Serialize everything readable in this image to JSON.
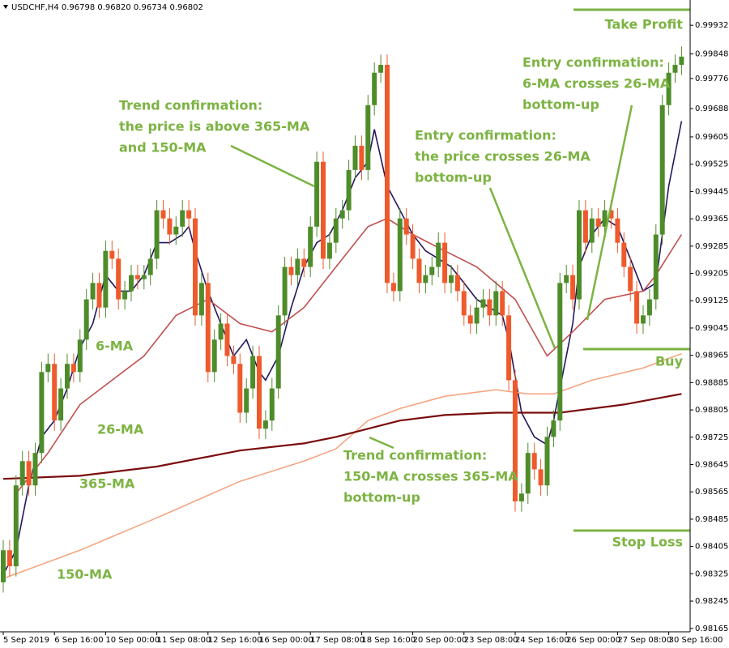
{
  "chart_data": {
    "type": "candlestick",
    "title": "USDCHF,H4  0.96798 0.96820 0.96734 0.96802",
    "categories": [
      "5 Sep 2019",
      null,
      null,
      null,
      null,
      null,
      null,
      null,
      "6 Sep 16:00",
      null,
      null,
      null,
      null,
      null,
      null,
      null,
      "10 Sep 00:00",
      null,
      null,
      null,
      null,
      null,
      null,
      null,
      "11 Sep 08:00",
      null,
      null,
      null,
      null,
      null,
      null,
      null,
      "12 Sep 16:00",
      null,
      null,
      null,
      null,
      null,
      null,
      null,
      "16 Sep 00:00",
      null,
      null,
      null,
      null,
      null,
      null,
      null,
      "17 Sep 08:00",
      null,
      null,
      null,
      null,
      null,
      null,
      null,
      "18 Sep 16:00",
      null,
      null,
      null,
      null,
      null,
      null,
      null,
      "20 Sep 00:00",
      null,
      null,
      null,
      null,
      null,
      null,
      null,
      "23 Sep 08:00",
      null,
      null,
      null,
      null,
      null,
      null,
      null,
      "24 Sep 16:00",
      null,
      null,
      null,
      null,
      null,
      null,
      null,
      "26 Sep 00:00",
      null,
      null,
      null,
      null,
      null,
      null,
      null,
      "27 Sep 08:00",
      null,
      null,
      null,
      null,
      null,
      null,
      null,
      "30 Sep 16:00",
      null,
      null
    ],
    "open": [
      0.983,
      0.98394,
      0.98347,
      0.98584,
      0.98655,
      0.98584,
      0.98679,
      0.98916,
      0.9894,
      0.98774,
      0.98868,
      0.9894,
      0.98916,
      0.99011,
      0.99129,
      0.99177,
      0.99105,
      0.99271,
      0.99248,
      0.99129,
      0.99153,
      0.992,
      0.99188,
      0.992,
      0.99248,
      0.9939,
      0.99366,
      0.99319,
      0.99342,
      0.9939,
      0.99366,
      0.99082,
      0.99177,
      0.98916,
      0.99011,
      0.99058,
      0.98963,
      0.9894,
      0.98797,
      0.98868,
      0.98963,
      0.9875,
      0.98774,
      0.98868,
      0.99082,
      0.99224,
      0.992,
      0.99248,
      0.99224,
      0.99342,
      0.99532,
      0.99248,
      0.99295,
      0.99366,
      0.9939,
      0.99508,
      0.99579,
      0.99508,
      0.99698,
      0.99793,
      0.99816,
      0.99177,
      0.99153,
      0.99366,
      0.99319,
      0.99248,
      0.99177,
      0.992,
      0.99224,
      0.99295,
      0.99177,
      0.992,
      0.99153,
      0.99082,
      0.99058,
      0.99105,
      0.99129,
      0.99082,
      0.99153,
      0.99082,
      0.98892,
      0.98537,
      0.9856,
      0.98679,
      0.98631,
      0.98584,
      0.98726,
      0.98774,
      0.99177,
      0.992,
      0.99129,
      0.9939,
      0.99295,
      0.99366,
      0.99342,
      0.9939,
      0.99366,
      0.99295,
      0.99224,
      0.99153,
      0.99058,
      0.99082,
      0.99129,
      0.99319,
      0.99698,
      0.99793,
      0.99816
    ],
    "high": [
      0.98424,
      0.98424,
      0.98614,
      0.98685,
      0.98685,
      0.98709,
      0.98946,
      0.9897,
      0.9897,
      0.98898,
      0.9897,
      0.9897,
      0.99041,
      0.99159,
      0.99207,
      0.99207,
      0.99301,
      0.99301,
      0.99278,
      0.99183,
      0.9923,
      0.9923,
      0.9923,
      0.99278,
      0.9942,
      0.9942,
      0.99396,
      0.99372,
      0.9942,
      0.9942,
      0.99396,
      0.99207,
      0.99207,
      0.99041,
      0.99088,
      0.99088,
      0.98993,
      0.9897,
      0.98898,
      0.98993,
      0.98993,
      0.98804,
      0.98898,
      0.99112,
      0.99254,
      0.99254,
      0.99278,
      0.99278,
      0.99372,
      0.99562,
      0.99562,
      0.99325,
      0.99396,
      0.9942,
      0.99538,
      0.99609,
      0.99609,
      0.99728,
      0.99823,
      0.99846,
      0.99846,
      0.99207,
      0.99396,
      0.99396,
      0.99349,
      0.99278,
      0.9923,
      0.99254,
      0.99325,
      0.99325,
      0.9923,
      0.9923,
      0.99183,
      0.99112,
      0.99135,
      0.99159,
      0.99159,
      0.99183,
      0.99183,
      0.99112,
      0.98922,
      0.9859,
      0.98709,
      0.98709,
      0.98661,
      0.98756,
      0.98804,
      0.99207,
      0.9923,
      0.9923,
      0.9942,
      0.9942,
      0.99396,
      0.99396,
      0.9942,
      0.9942,
      0.99396,
      0.99325,
      0.99254,
      0.99183,
      0.99112,
      0.99159,
      0.99349,
      0.99728,
      0.99823,
      0.99846,
      0.9987
    ],
    "low": [
      0.9827,
      0.98317,
      0.98317,
      0.98554,
      0.98554,
      0.98554,
      0.98649,
      0.98886,
      0.98744,
      0.98744,
      0.98838,
      0.98886,
      0.98886,
      0.98981,
      0.99099,
      0.99075,
      0.99075,
      0.99218,
      0.99099,
      0.99099,
      0.99123,
      0.99158,
      0.99158,
      0.9917,
      0.99218,
      0.99336,
      0.99289,
      0.99289,
      0.99312,
      0.99336,
      0.99052,
      0.99052,
      0.98886,
      0.98886,
      0.98981,
      0.98933,
      0.9891,
      0.98767,
      0.98767,
      0.98838,
      0.9872,
      0.9872,
      0.98744,
      0.98838,
      0.99052,
      0.9917,
      0.9917,
      0.99194,
      0.99194,
      0.99312,
      0.99218,
      0.99218,
      0.99265,
      0.99336,
      0.9936,
      0.99478,
      0.99478,
      0.99478,
      0.99668,
      0.99763,
      0.99147,
      0.99123,
      0.99123,
      0.99289,
      0.99218,
      0.99147,
      0.99147,
      0.9917,
      0.99194,
      0.99147,
      0.99147,
      0.99123,
      0.99052,
      0.99028,
      0.99028,
      0.99075,
      0.99052,
      0.99052,
      0.99052,
      0.98862,
      0.98507,
      0.98507,
      0.9853,
      0.98601,
      0.98554,
      0.98554,
      0.98696,
      0.98744,
      0.99147,
      0.99099,
      0.99099,
      0.99265,
      0.99265,
      0.99312,
      0.99312,
      0.99336,
      0.99265,
      0.99194,
      0.99123,
      0.99028,
      0.99028,
      0.99052,
      0.99099,
      0.99289,
      0.99668,
      0.99763,
      0.99786
    ],
    "close": [
      0.98394,
      0.98347,
      0.98584,
      0.98655,
      0.98584,
      0.98679,
      0.98916,
      0.9894,
      0.98774,
      0.98868,
      0.9894,
      0.98916,
      0.99011,
      0.99129,
      0.99177,
      0.99105,
      0.99271,
      0.99248,
      0.99129,
      0.99153,
      0.992,
      0.99188,
      0.992,
      0.99248,
      0.9939,
      0.99366,
      0.99319,
      0.99342,
      0.9939,
      0.99366,
      0.99082,
      0.99177,
      0.98916,
      0.99011,
      0.99058,
      0.98963,
      0.9894,
      0.98797,
      0.98868,
      0.98963,
      0.9875,
      0.98774,
      0.98868,
      0.99082,
      0.99224,
      0.992,
      0.99248,
      0.99224,
      0.99342,
      0.99532,
      0.99248,
      0.99295,
      0.99366,
      0.9939,
      0.99508,
      0.99579,
      0.99508,
      0.99698,
      0.99793,
      0.99816,
      0.99177,
      0.99153,
      0.99366,
      0.99319,
      0.99248,
      0.99177,
      0.992,
      0.99224,
      0.99295,
      0.99177,
      0.992,
      0.99153,
      0.99082,
      0.99058,
      0.99105,
      0.99129,
      0.99082,
      0.99153,
      0.99082,
      0.98892,
      0.98537,
      0.9856,
      0.98679,
      0.98631,
      0.98584,
      0.98726,
      0.98774,
      0.99177,
      0.992,
      0.99129,
      0.9939,
      0.99295,
      0.99366,
      0.99342,
      0.9939,
      0.99366,
      0.99295,
      0.99224,
      0.99153,
      0.99058,
      0.99082,
      0.99129,
      0.99319,
      0.99698,
      0.99793,
      0.99816,
      0.9984
    ],
    "up_color": "#4e8c2a",
    "down_color": "#ee5a2c",
    "ylim": [
      0.98155,
      1.00006
    ],
    "yticks": [
      0.99932,
      0.99848,
      0.99776,
      0.99688,
      0.99605,
      0.99525,
      0.99445,
      0.99365,
      0.99285,
      0.99205,
      0.99125,
      0.99045,
      0.98965,
      0.98885,
      0.98805,
      0.98725,
      0.98645,
      0.98565,
      0.98485,
      0.98405,
      0.98325,
      0.98245,
      0.98165
    ],
    "series": [
      {
        "name": "6-MA",
        "color": "#22165e",
        "x": [
          0,
          2,
          4,
          6,
          8,
          10,
          12,
          14,
          16,
          18,
          20,
          22,
          24,
          26,
          28,
          29,
          30,
          32,
          34,
          36,
          38,
          40,
          41,
          43,
          45,
          47,
          49,
          51,
          53,
          55,
          57,
          58,
          60,
          62,
          64,
          66,
          68,
          70,
          72,
          74,
          76,
          78,
          79,
          81,
          83,
          85,
          86,
          88,
          89,
          90,
          92,
          94,
          96,
          98,
          100,
          102,
          104,
          106
        ],
        "values": [
          0.98323,
          0.98394,
          0.98584,
          0.98726,
          0.98774,
          0.98868,
          0.98987,
          0.99058,
          0.992,
          0.99153,
          0.99153,
          0.992,
          0.99295,
          0.99295,
          0.99319,
          0.99342,
          0.99271,
          0.99153,
          0.99058,
          0.98963,
          0.99011,
          0.98916,
          0.98892,
          0.98963,
          0.99105,
          0.99224,
          0.99295,
          0.99319,
          0.9939,
          0.99485,
          0.99532,
          0.99627,
          0.99461,
          0.9939,
          0.99319,
          0.99271,
          0.99248,
          0.99224,
          0.99177,
          0.99129,
          0.99105,
          0.99082,
          0.99011,
          0.98797,
          0.98726,
          0.98703,
          0.98774,
          0.98963,
          0.99058,
          0.99224,
          0.99319,
          0.99366,
          0.99342,
          0.99248,
          0.99153,
          0.99177,
          0.99461,
          0.99651
        ]
      },
      {
        "name": "26-MA",
        "color": "#c0504d",
        "x": [
          2,
          7,
          12,
          17,
          22,
          27,
          32,
          37,
          42,
          47,
          52,
          57,
          60,
          64,
          69,
          74,
          80,
          85,
          89,
          94,
          100,
          102,
          106
        ],
        "values": [
          0.9856,
          0.98679,
          0.98821,
          0.98892,
          0.98963,
          0.99082,
          0.99129,
          0.99058,
          0.99034,
          0.99105,
          0.99224,
          0.99342,
          0.99366,
          0.99319,
          0.99271,
          0.99224,
          0.99129,
          0.98963,
          0.99034,
          0.99129,
          0.99153,
          0.992,
          0.99319
        ]
      },
      {
        "name": "150-MA",
        "color": "#f4a582",
        "x": [
          0,
          12,
          24,
          37,
          47,
          52,
          57,
          62,
          69,
          77,
          82,
          86,
          92,
          100,
          106
        ],
        "values": [
          0.98311,
          0.98394,
          0.98489,
          0.98596,
          0.98655,
          0.98691,
          0.98774,
          0.98809,
          0.98845,
          0.98864,
          0.98852,
          0.98852,
          0.98892,
          0.98928,
          0.9897
        ]
      },
      {
        "name": "365-MA",
        "color": "#7a0c0c",
        "x": [
          0,
          12,
          24,
          37,
          47,
          52,
          57,
          62,
          69,
          77,
          87,
          97,
          106
        ],
        "values": [
          0.98603,
          0.98612,
          0.98639,
          0.98686,
          0.98707,
          0.98726,
          0.9875,
          0.98774,
          0.9879,
          0.98797,
          0.98797,
          0.98821,
          0.98852
        ]
      }
    ],
    "annotations": [
      [
        "Trend confirmation:",
        "the price is above 365-MA",
        "and 150-MA"
      ],
      [
        "Entry confirmation:",
        "the price crosses 26-MA",
        "bottom-up"
      ],
      [
        "Entry confirmation:",
        "6-MA crosses 26-MA",
        "bottom-up"
      ],
      [
        "Trend confirmation:",
        "150-MA crosses 365-MA",
        "bottom-up"
      ]
    ],
    "level_labels": [
      "Take Profit",
      "Buy",
      "Stop Loss"
    ]
  }
}
